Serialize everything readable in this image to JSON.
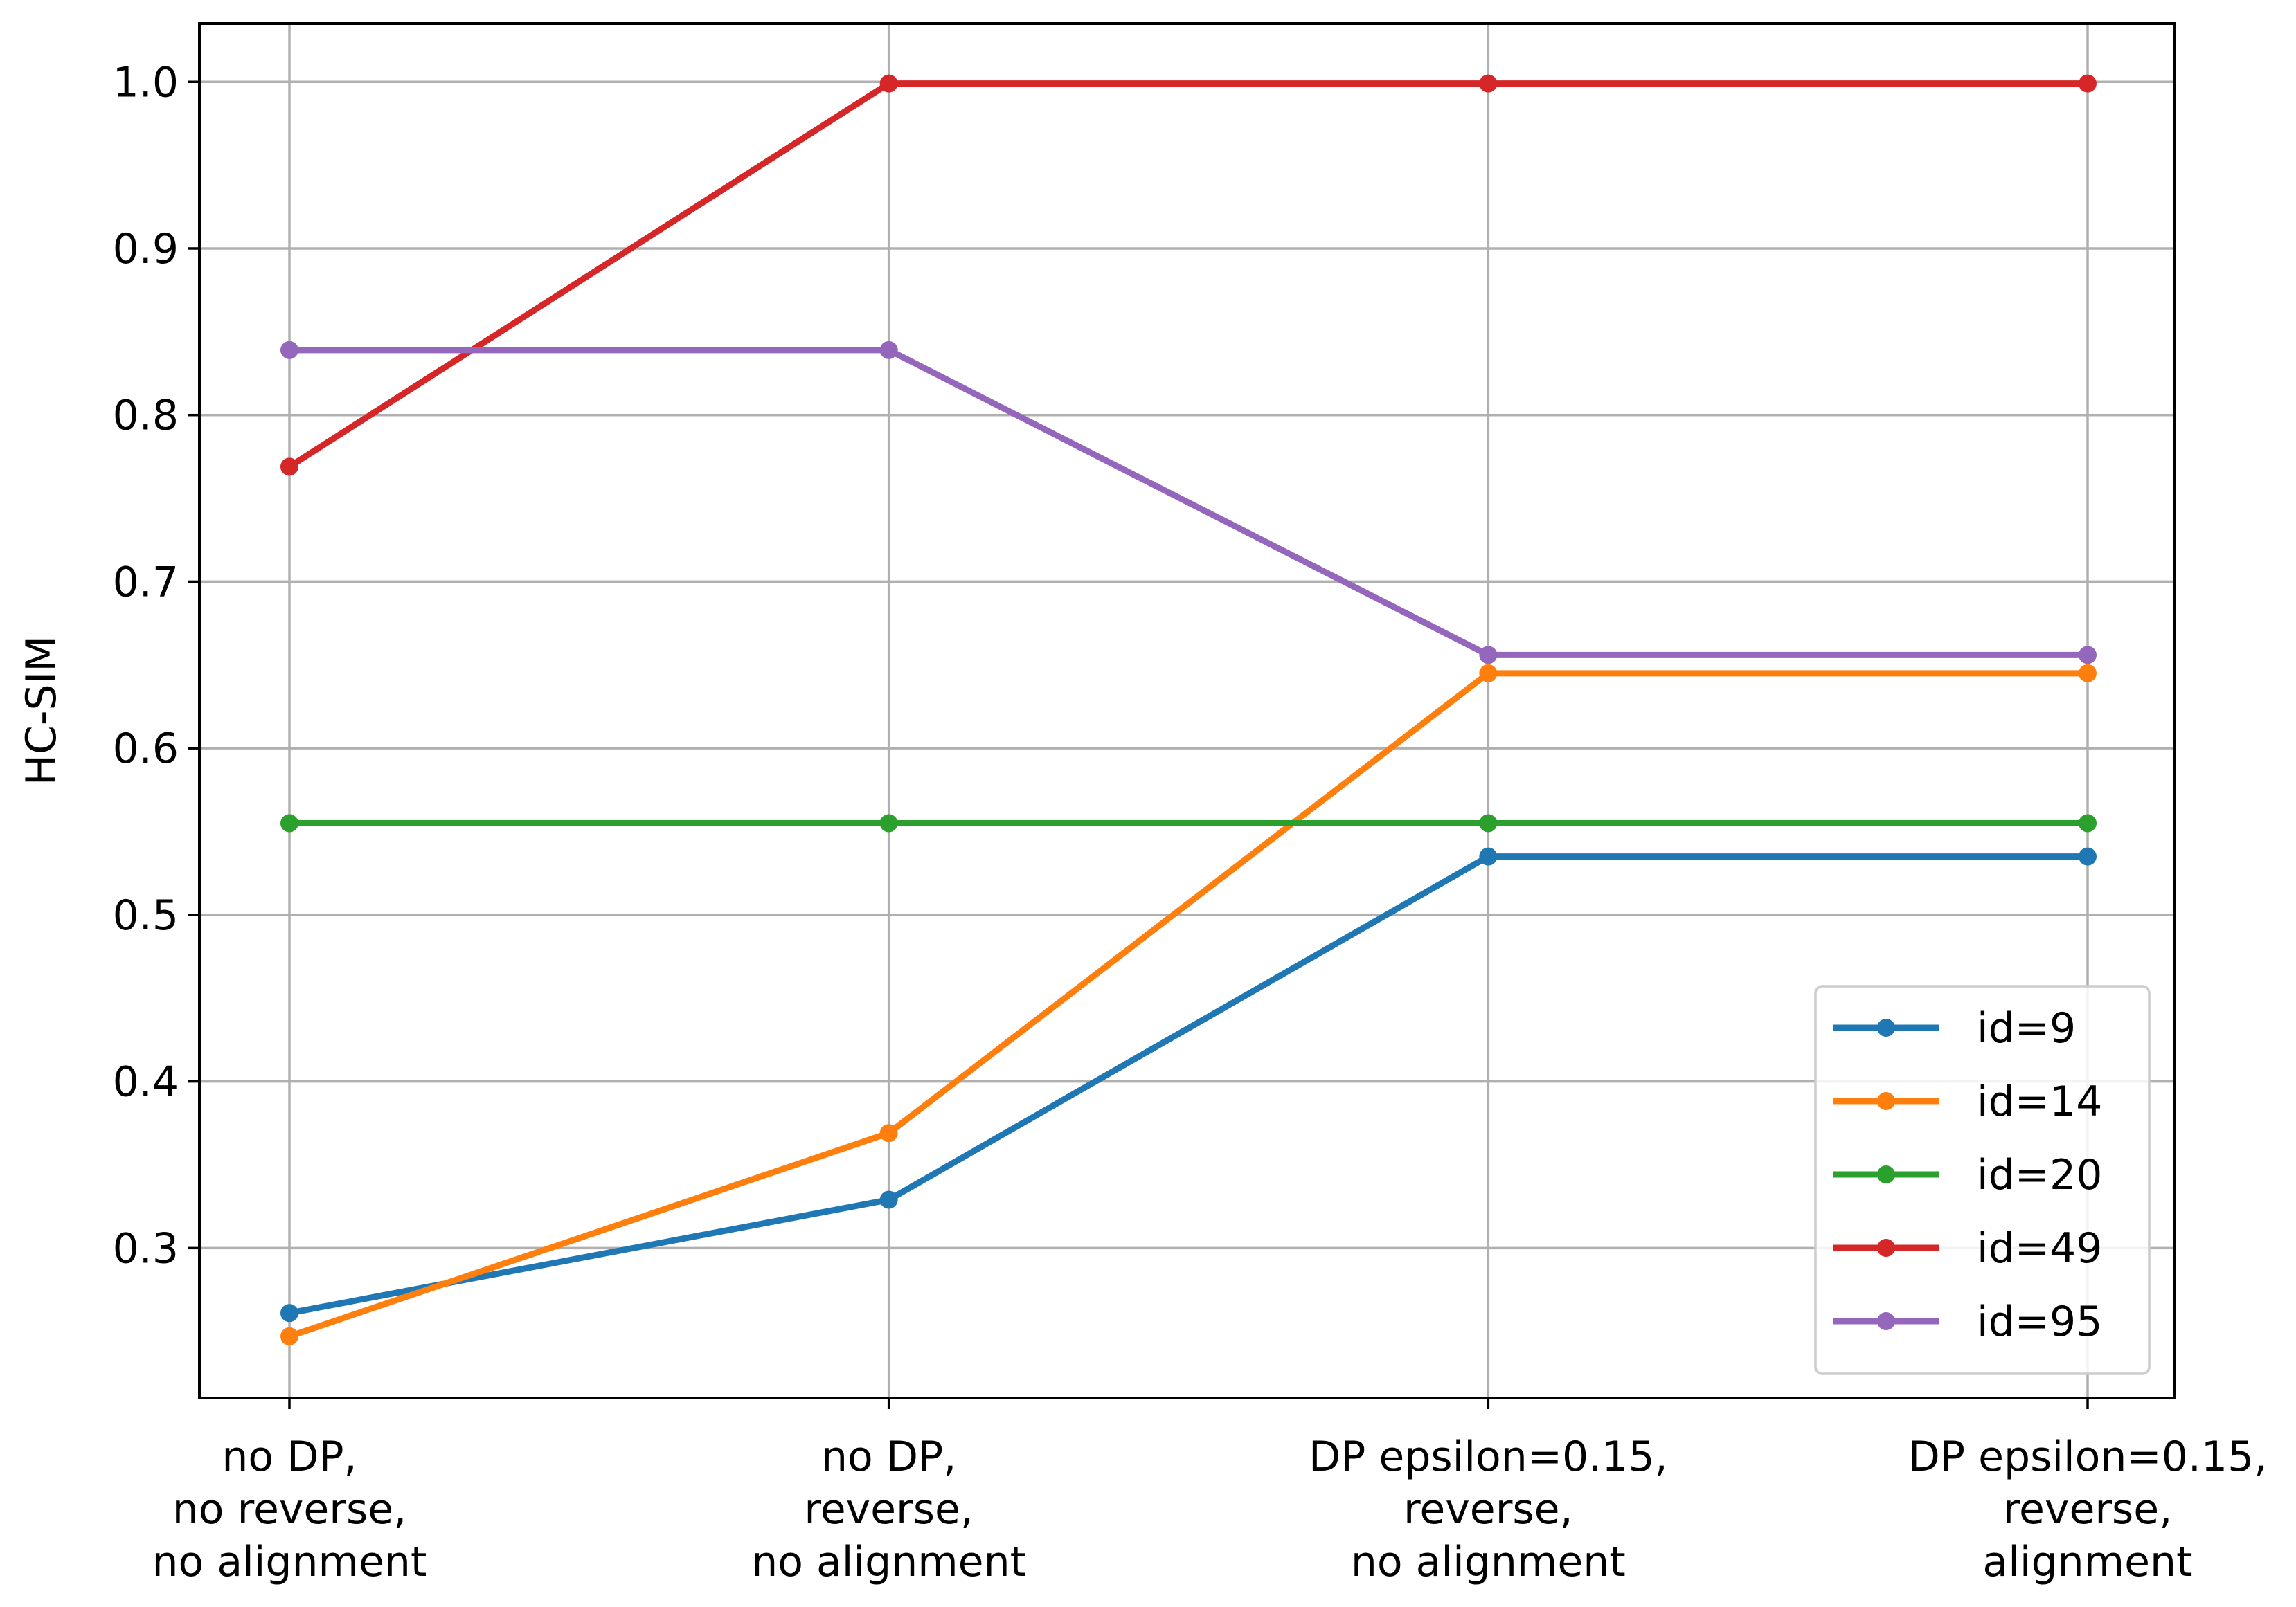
{
  "chart_data": {
    "type": "line",
    "title": "",
    "xlabel": "",
    "ylabel": "HC-SIM",
    "ylim": [
      0.21,
      1.035
    ],
    "yticks": [
      "0.3",
      "0.4",
      "0.5",
      "0.6",
      "0.7",
      "0.8",
      "0.9",
      "1.0"
    ],
    "grid": true,
    "legend_position": "lower-right",
    "categories": [
      [
        "no DP,",
        "no reverse,",
        "no alignment"
      ],
      [
        "no DP,",
        "reverse,",
        "no alignment"
      ],
      [
        "DP epsilon=0.15,",
        "reverse,",
        "no alignment"
      ],
      [
        "DP epsilon=0.15,",
        "reverse,",
        "alignment"
      ]
    ],
    "series": [
      {
        "name": "id=9",
        "color": "#1f77b4",
        "values": [
          0.261,
          0.329,
          0.535,
          0.535
        ]
      },
      {
        "name": "id=14",
        "color": "#ff7f0e",
        "values": [
          0.247,
          0.369,
          0.645,
          0.645
        ]
      },
      {
        "name": "id=20",
        "color": "#2ca02c",
        "values": [
          0.555,
          0.555,
          0.555,
          0.555
        ]
      },
      {
        "name": "id=49",
        "color": "#d62728",
        "values": [
          0.769,
          0.999,
          0.999,
          0.999
        ]
      },
      {
        "name": "id=95",
        "color": "#9467bd",
        "values": [
          0.839,
          0.839,
          0.656,
          0.656
        ]
      }
    ]
  }
}
